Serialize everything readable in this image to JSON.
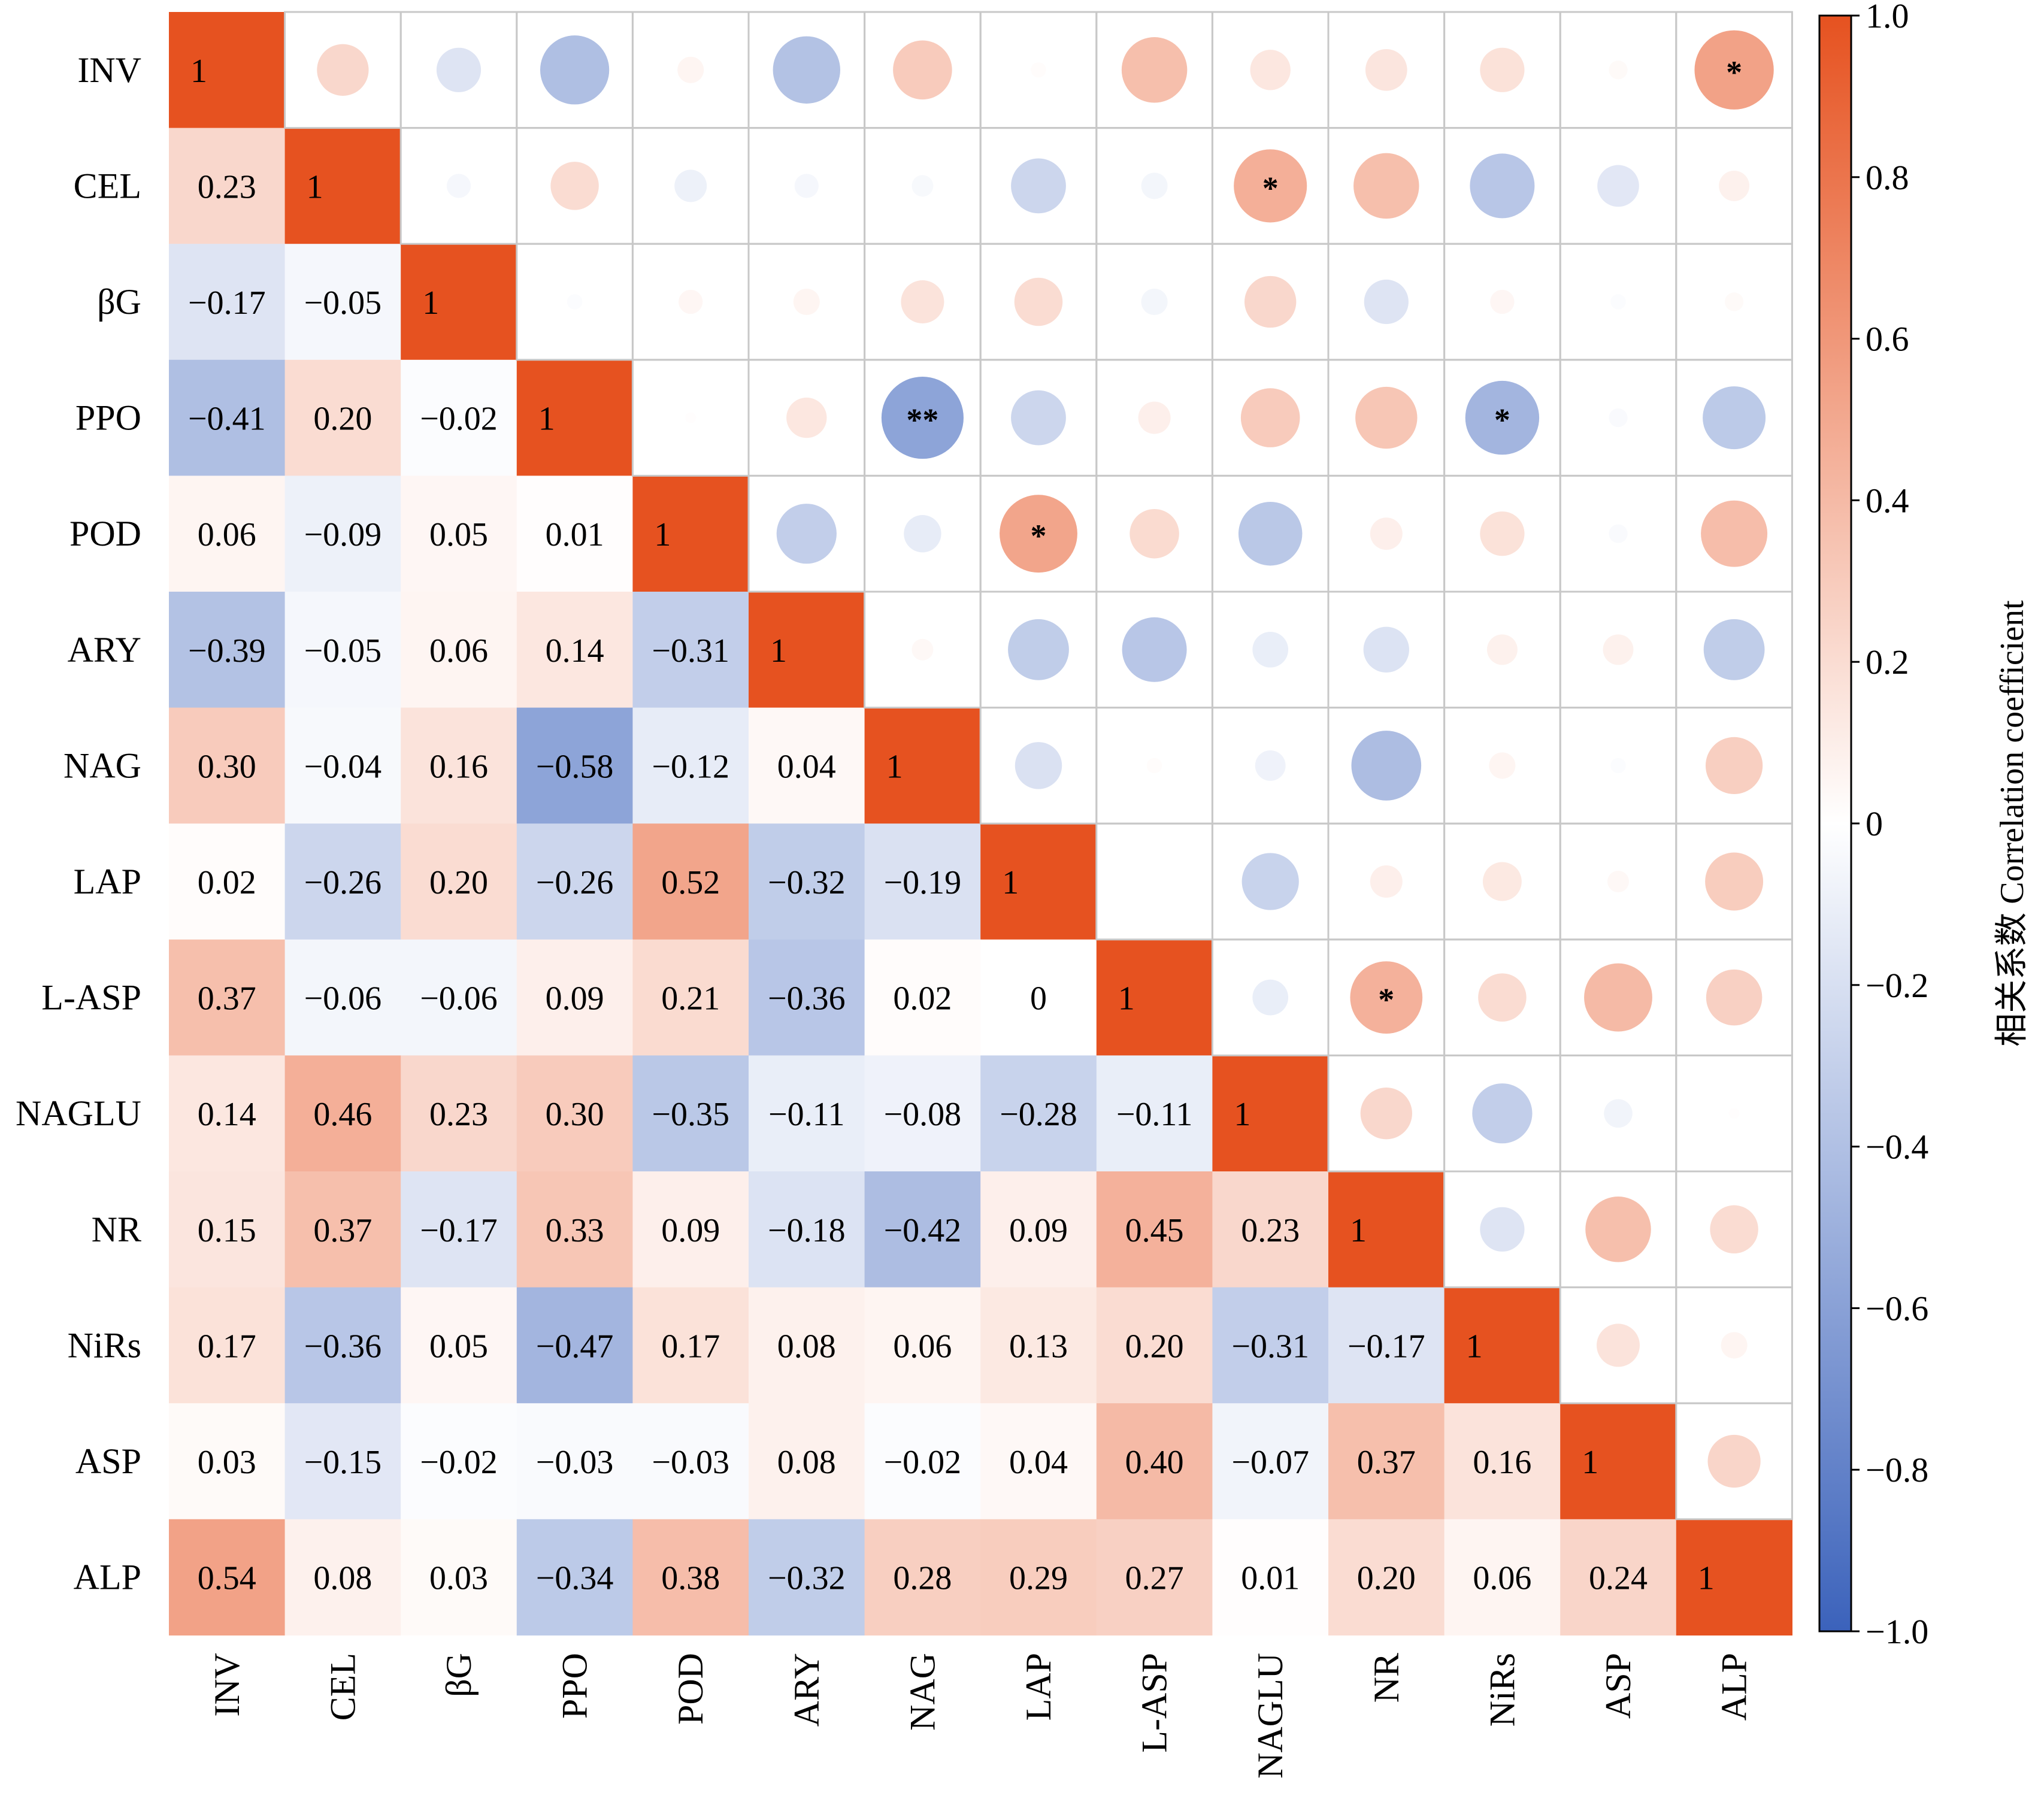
{
  "chart_data": {
    "type": "heatmap",
    "variables": [
      "INV",
      "CEL",
      "βG",
      "PPO",
      "POD",
      "ARY",
      "NAG",
      "LAP",
      "L-ASP",
      "NAGLU",
      "NR",
      "NiRs",
      "ASP",
      "ALP"
    ],
    "lower_triangle": [
      [
        1
      ],
      [
        0.23,
        1
      ],
      [
        -0.17,
        -0.05,
        1
      ],
      [
        -0.41,
        0.2,
        -0.02,
        1
      ],
      [
        0.06,
        -0.09,
        0.05,
        0.01,
        1
      ],
      [
        -0.39,
        -0.05,
        0.06,
        0.14,
        -0.31,
        1
      ],
      [
        0.3,
        -0.04,
        0.16,
        -0.58,
        -0.12,
        0.04,
        1
      ],
      [
        0.02,
        -0.26,
        0.2,
        -0.26,
        0.52,
        -0.32,
        -0.19,
        1
      ],
      [
        0.37,
        -0.06,
        -0.06,
        0.09,
        0.21,
        -0.36,
        0.02,
        0,
        1
      ],
      [
        0.14,
        0.46,
        0.23,
        0.3,
        -0.35,
        -0.11,
        -0.08,
        -0.28,
        -0.11,
        1
      ],
      [
        0.15,
        0.37,
        -0.17,
        0.33,
        0.09,
        -0.18,
        -0.42,
        0.09,
        0.45,
        0.23,
        1
      ],
      [
        0.17,
        -0.36,
        0.05,
        -0.47,
        0.17,
        0.08,
        0.06,
        0.13,
        0.2,
        -0.31,
        -0.17,
        1
      ],
      [
        0.03,
        -0.15,
        -0.02,
        -0.03,
        -0.03,
        0.08,
        -0.02,
        0.04,
        0.4,
        -0.07,
        0.37,
        0.16,
        1
      ],
      [
        0.54,
        0.08,
        0.03,
        -0.34,
        0.38,
        -0.32,
        0.28,
        0.29,
        0.27,
        0.01,
        0.2,
        0.06,
        0.24,
        1
      ]
    ],
    "lower_labels": [
      [
        "1"
      ],
      [
        "0.23",
        "1"
      ],
      [
        "−0.17",
        "−0.05",
        "1"
      ],
      [
        "−0.41",
        "0.20",
        "−0.02",
        "1"
      ],
      [
        "0.06",
        "−0.09",
        "0.05",
        "0.01",
        "1"
      ],
      [
        "−0.39",
        "−0.05",
        "0.06",
        "0.14",
        "−0.31",
        "1"
      ],
      [
        "0.30",
        "−0.04",
        "0.16",
        "−0.58",
        "−0.12",
        "0.04",
        "1"
      ],
      [
        "0.02",
        "−0.26",
        "0.20",
        "−0.26",
        "0.52",
        "−0.32",
        "−0.19",
        "1"
      ],
      [
        "0.37",
        "−0.06",
        "−0.06",
        "0.09",
        "0.21",
        "−0.36",
        "0.02",
        "0",
        "1"
      ],
      [
        "0.14",
        "0.46",
        "0.23",
        "0.30",
        "−0.35",
        "−0.11",
        "−0.08",
        "−0.28",
        "−0.11",
        "1"
      ],
      [
        "0.15",
        "0.37",
        "−0.17",
        "0.33",
        "0.09",
        "−0.18",
        "−0.42",
        "0.09",
        "0.45",
        "0.23",
        "1"
      ],
      [
        "0.17",
        "−0.36",
        "0.05",
        "−0.47",
        "0.17",
        "0.08",
        "0.06",
        "0.13",
        "0.20",
        "−0.31",
        "−0.17",
        "1"
      ],
      [
        "0.03",
        "−0.15",
        "−0.02",
        "−0.03",
        "−0.03",
        "0.08",
        "−0.02",
        "0.04",
        "0.40",
        "−0.07",
        "0.37",
        "0.16",
        "1"
      ],
      [
        "0.54",
        "0.08",
        "0.03",
        "−0.34",
        "0.38",
        "−0.32",
        "0.28",
        "0.29",
        "0.27",
        "0.01",
        "0.20",
        "0.06",
        "0.24",
        "1"
      ]
    ],
    "significance": [
      {
        "row": "INV",
        "col": "ALP",
        "mark": "*"
      },
      {
        "row": "CEL",
        "col": "NAGLU",
        "mark": "*"
      },
      {
        "row": "PPO",
        "col": "NAG",
        "mark": "**"
      },
      {
        "row": "PPO",
        "col": "NiRs",
        "mark": "*"
      },
      {
        "row": "POD",
        "col": "LAP",
        "mark": "*"
      },
      {
        "row": "L-ASP",
        "col": "NR",
        "mark": "*"
      }
    ],
    "colorbar": {
      "label": "相关系数 Correlation coefficient",
      "range": [
        -1.0,
        1.0
      ],
      "ticks": [
        "1.0",
        "0.8",
        "0.6",
        "0.4",
        "0.2",
        "0",
        "−0.2",
        "−0.4",
        "−0.6",
        "−0.8",
        "−1.0"
      ],
      "tick_values": [
        1.0,
        0.8,
        0.6,
        0.4,
        0.2,
        0,
        -0.2,
        -0.4,
        -0.6,
        -0.8,
        -1.0
      ],
      "colormap": [
        "#3B62BB",
        "#FFFFFF",
        "#E65220"
      ]
    },
    "upper_triangle_style": "circles sized and coloured by coefficient",
    "grid_color": "#C8C8C8"
  }
}
